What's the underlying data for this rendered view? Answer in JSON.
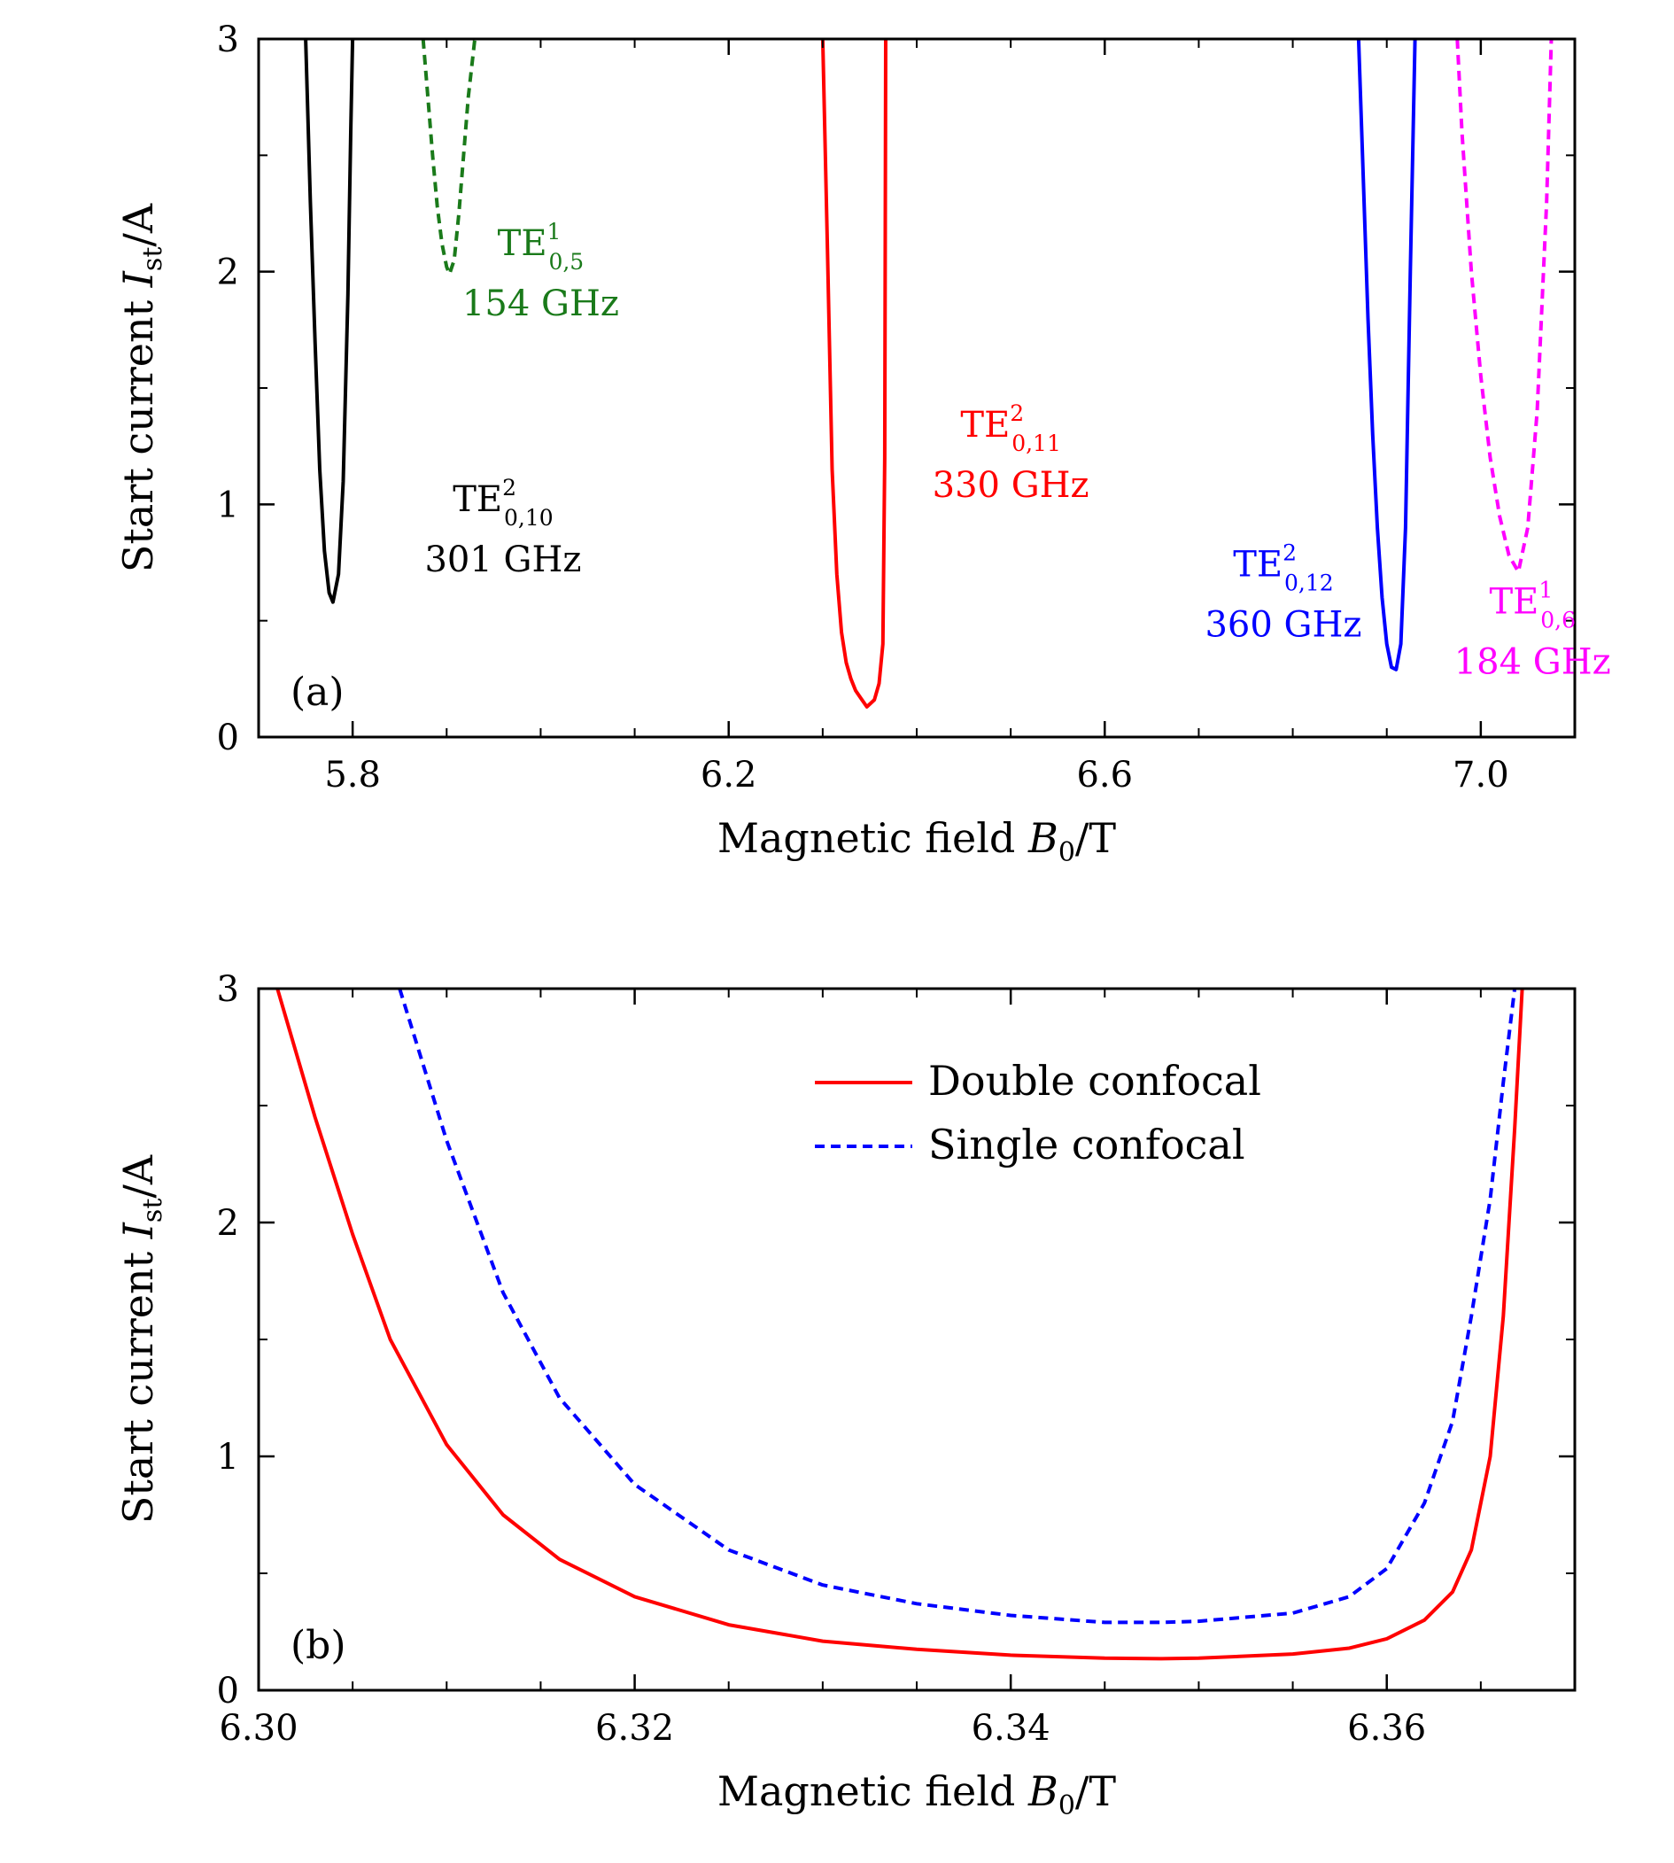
{
  "chart_data": [
    {
      "type": "line",
      "panel_label": "(a)",
      "xlabel": "Magnetic field B0/T",
      "ylabel": "Start current Ist/A",
      "xlim": [
        5.7,
        7.1
      ],
      "ylim": [
        0,
        3
      ],
      "xticks": [
        5.8,
        6.2,
        6.6,
        7.0
      ],
      "xtick_labels": [
        "5.8",
        "6.2",
        "6.6",
        "7.0"
      ],
      "yticks": [
        0,
        1,
        2,
        3
      ],
      "ytick_labels": [
        "0",
        "1",
        "2",
        "3"
      ],
      "grid": false,
      "series": [
        {
          "mode": "TE0,10 (2nd harmonic)",
          "color": "#000000",
          "style": "solid",
          "x": [
            5.75,
            5.755,
            5.76,
            5.765,
            5.77,
            5.775,
            5.779,
            5.785,
            5.79,
            5.795,
            5.798,
            5.8
          ],
          "y": [
            3.0,
            2.3,
            1.7,
            1.15,
            0.8,
            0.62,
            0.58,
            0.7,
            1.1,
            1.9,
            2.6,
            3.0
          ]
        },
        {
          "mode": "TE0,5 (1st harmonic)",
          "color": "#1a7a1a",
          "style": "dashed",
          "x": [
            5.875,
            5.88,
            5.885,
            5.89,
            5.895,
            5.9,
            5.903,
            5.908,
            5.913,
            5.918,
            5.923,
            5.93
          ],
          "y": [
            3.0,
            2.75,
            2.5,
            2.28,
            2.12,
            2.02,
            1.99,
            2.05,
            2.25,
            2.5,
            2.75,
            3.0
          ]
        },
        {
          "mode": "TE0,11 (2nd harmonic)",
          "color": "#ff0000",
          "style": "solid",
          "x": [
            6.3,
            6.305,
            6.31,
            6.315,
            6.32,
            6.325,
            6.33,
            6.335,
            6.34,
            6.347,
            6.355,
            6.36,
            6.364,
            6.366,
            6.367
          ],
          "y": [
            3.0,
            2.1,
            1.15,
            0.7,
            0.45,
            0.32,
            0.25,
            0.2,
            0.17,
            0.13,
            0.16,
            0.23,
            0.4,
            1.2,
            3.0
          ]
        },
        {
          "mode": "TE0,12 (2nd harmonic)",
          "color": "#0000ff",
          "style": "solid",
          "x": [
            6.87,
            6.875,
            6.88,
            6.885,
            6.89,
            6.895,
            6.9,
            6.905,
            6.91,
            6.915,
            6.92,
            6.925,
            6.93
          ],
          "y": [
            3.0,
            2.4,
            1.8,
            1.3,
            0.9,
            0.6,
            0.4,
            0.3,
            0.29,
            0.4,
            0.9,
            2.0,
            3.0
          ]
        },
        {
          "mode": "TE0,6 (1st harmonic)",
          "color": "#ff00ff",
          "style": "dashed",
          "x": [
            6.975,
            6.98,
            6.99,
            7.0,
            7.01,
            7.02,
            7.03,
            7.04,
            7.05,
            7.06,
            7.07,
            7.075
          ],
          "y": [
            3.0,
            2.6,
            2.0,
            1.55,
            1.2,
            0.95,
            0.78,
            0.71,
            0.9,
            1.4,
            2.3,
            3.0
          ]
        }
      ],
      "annotations": [
        {
          "base": "TE",
          "sup": "2",
          "sub": "0,10",
          "freq": "301 GHz",
          "color": "#000000",
          "at": [
            5.96,
            0.78
          ]
        },
        {
          "base": "TE",
          "sup": "1",
          "sub": "0,5",
          "freq": "154 GHz",
          "color": "#1a7a1a",
          "at": [
            6.0,
            1.88
          ]
        },
        {
          "base": "TE",
          "sup": "2",
          "sub": "0,11",
          "freq": "330 GHz",
          "color": "#ff0000",
          "at": [
            6.5,
            1.1
          ]
        },
        {
          "base": "TE",
          "sup": "2",
          "sub": "0,12",
          "freq": "360 GHz",
          "color": "#0000ff",
          "at": [
            6.79,
            0.5
          ]
        },
        {
          "base": "TE",
          "sup": "1",
          "sub": "0,6",
          "freq": "184 GHz",
          "color": "#ff00ff",
          "at": [
            7.055,
            0.34
          ]
        }
      ]
    },
    {
      "type": "line",
      "panel_label": "(b)",
      "xlabel": "Magnetic field B0/T",
      "ylabel": "Start current Ist/A",
      "xlim": [
        6.3,
        6.37
      ],
      "ylim": [
        0,
        3
      ],
      "xticks": [
        6.3,
        6.32,
        6.34,
        6.36
      ],
      "xtick_labels": [
        "6.30",
        "6.32",
        "6.34",
        "6.36"
      ],
      "yticks": [
        0,
        1,
        2,
        3
      ],
      "ytick_labels": [
        "0",
        "1",
        "2",
        "3"
      ],
      "grid": false,
      "legend_position": "top-right",
      "series": [
        {
          "name": "Double confocal",
          "color": "#ff0000",
          "style": "solid",
          "x": [
            6.301,
            6.303,
            6.305,
            6.307,
            6.31,
            6.313,
            6.316,
            6.32,
            6.325,
            6.33,
            6.335,
            6.34,
            6.345,
            6.348,
            6.35,
            6.355,
            6.358,
            6.36,
            6.362,
            6.3635,
            6.3645,
            6.3655,
            6.3662,
            6.3668,
            6.3672
          ],
          "y": [
            3.0,
            2.45,
            1.95,
            1.5,
            1.05,
            0.75,
            0.56,
            0.4,
            0.28,
            0.21,
            0.175,
            0.15,
            0.137,
            0.135,
            0.137,
            0.155,
            0.18,
            0.22,
            0.3,
            0.42,
            0.6,
            1.0,
            1.6,
            2.4,
            3.0
          ]
        },
        {
          "name": "Single confocal",
          "color": "#0000ff",
          "style": "dashed",
          "x": [
            6.3075,
            6.31,
            6.313,
            6.316,
            6.32,
            6.325,
            6.33,
            6.335,
            6.34,
            6.345,
            6.348,
            6.35,
            6.355,
            6.358,
            6.36,
            6.362,
            6.3635,
            6.3645,
            6.3655,
            6.3662,
            6.3668
          ],
          "y": [
            3.0,
            2.35,
            1.7,
            1.25,
            0.88,
            0.6,
            0.45,
            0.37,
            0.32,
            0.29,
            0.29,
            0.295,
            0.33,
            0.4,
            0.52,
            0.8,
            1.15,
            1.6,
            2.1,
            2.6,
            3.0
          ]
        }
      ]
    }
  ]
}
